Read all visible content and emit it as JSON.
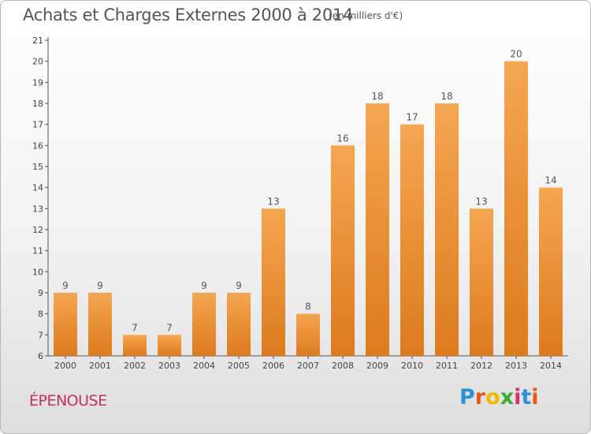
{
  "header": {
    "title": "Achats et Charges Externes 2000 à 2014",
    "subtitle": "(en milliers d'€)"
  },
  "footer": {
    "commune": "ÉPENOUSE",
    "brand_letters": [
      "P",
      "r",
      "o",
      "x",
      "i",
      "t",
      "i"
    ],
    "brand_colors": [
      "#2f8fd6",
      "#e8561c",
      "#f2b700",
      "#3aa935",
      "#d6326b",
      "#2f8fd6",
      "#e8561c"
    ]
  },
  "colors": {
    "bar_top": "#f5a651",
    "bar_bottom": "#dd7a1e",
    "axis": "#555555"
  },
  "chart_data": {
    "type": "bar",
    "title": "Achats et Charges Externes 2000 à 2014",
    "subtitle": "(en milliers d'€)",
    "categories": [
      "2000",
      "2001",
      "2002",
      "2003",
      "2004",
      "2005",
      "2006",
      "2007",
      "2008",
      "2009",
      "2010",
      "2011",
      "2012",
      "2013",
      "2014"
    ],
    "values": [
      9,
      9,
      7,
      7,
      9,
      9,
      13,
      8,
      16,
      18,
      17,
      18,
      13,
      20,
      14
    ],
    "ylim": [
      6,
      21
    ],
    "yticks": [
      6,
      7,
      8,
      9,
      10,
      11,
      12,
      13,
      14,
      15,
      16,
      17,
      18,
      19,
      20,
      21
    ],
    "grid": false,
    "data_labels": true
  }
}
